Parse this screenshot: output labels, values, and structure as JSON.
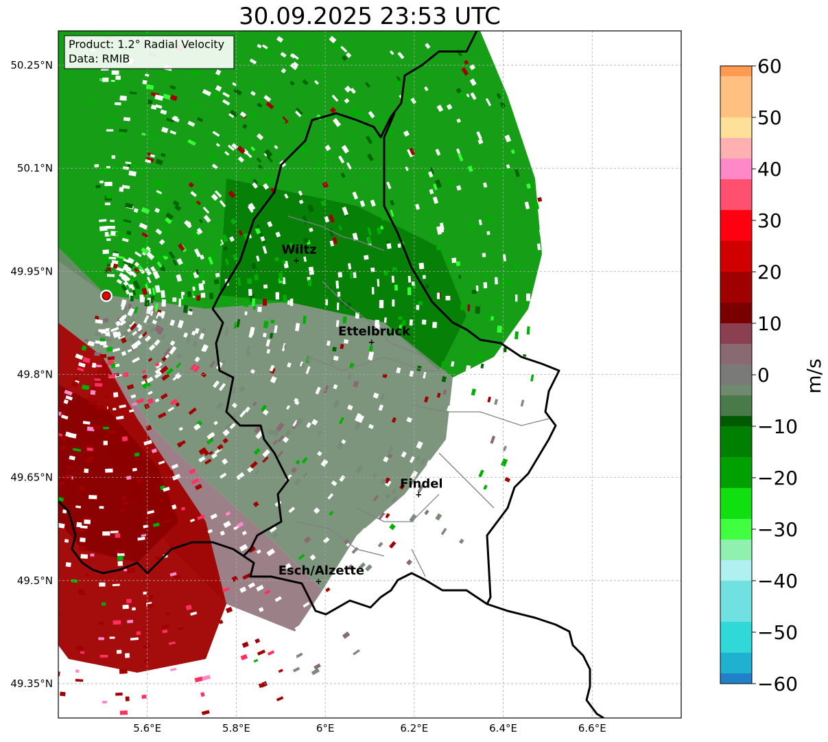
{
  "title": "30.09.2025 23:53 UTC",
  "info_box": {
    "product": "Product: 1.2° Radial Velocity",
    "data_source": "Data: RMIB"
  },
  "map": {
    "lon_range": [
      5.4,
      6.8
    ],
    "lat_range": [
      49.3,
      50.3
    ],
    "lon_ticks": [
      "5.6°E",
      "5.8°E",
      "6°E",
      "6.2°E",
      "6.4°E",
      "6.6°E"
    ],
    "lat_ticks": [
      "50.25°N",
      "50.1°N",
      "49.95°N",
      "49.8°N",
      "49.65°N",
      "49.5°N",
      "49.35°N"
    ],
    "grid": true,
    "radar_site": {
      "marker_color": "#e00000"
    },
    "cities": [
      {
        "name": "Wiltz",
        "lon": 5.935,
        "lat": 49.967
      },
      {
        "name": "Ettelbruck",
        "lon": 6.104,
        "lat": 49.848
      },
      {
        "name": "Findel",
        "lon": 6.21,
        "lat": 49.626
      },
      {
        "name": "Esch/Alzette",
        "lon": 5.985,
        "lat": 49.5
      }
    ]
  },
  "colorbar": {
    "label": "m/s",
    "range": [
      -60,
      60
    ],
    "tick_values": [
      60,
      50,
      40,
      30,
      20,
      10,
      0,
      -10,
      -20,
      -30,
      -40,
      -50,
      -60
    ],
    "tick_labels": [
      "60",
      "50",
      "40",
      "30",
      "20",
      "10",
      "0",
      "−10",
      "−20",
      "−30",
      "−40",
      "−50",
      "−60"
    ],
    "colors": {
      "approaching_dark": "#006400",
      "approaching": "#00b000",
      "approaching_light": "#33ff33",
      "zero": "#7a8a78",
      "receding": "#a00000",
      "receding_light": "#ff3060",
      "pink": "#ff88cc",
      "orange": "#ffa050",
      "cyan": "#30e0e0",
      "blue": "#2080c8"
    }
  }
}
